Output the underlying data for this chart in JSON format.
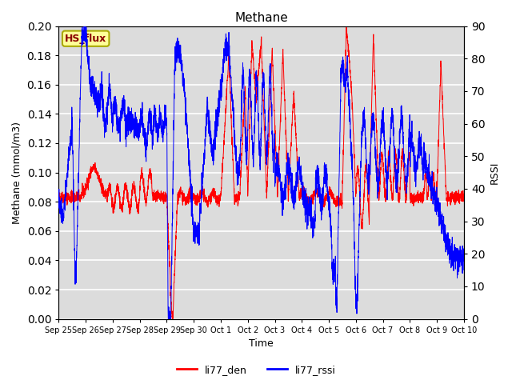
{
  "title": "Methane",
  "xlabel": "Time",
  "ylabel_left": "Methane (mmol/m3)",
  "ylabel_right": "RSSI",
  "ylim_left": [
    0.0,
    0.2
  ],
  "ylim_right": [
    0,
    90
  ],
  "yticks_left": [
    0.0,
    0.02,
    0.04,
    0.06,
    0.08,
    0.1,
    0.12,
    0.14,
    0.16,
    0.18,
    0.2
  ],
  "yticks_right": [
    0,
    10,
    20,
    30,
    40,
    50,
    60,
    70,
    80,
    90
  ],
  "color_red": "#FF0000",
  "color_blue": "#0000FF",
  "fig_bg_color": "#FFFFFF",
  "plot_bg_color": "#DCDCDC",
  "legend_label_red": "li77_den",
  "legend_label_blue": "li77_rssi",
  "hs_flux_label": "HS_flux",
  "hs_flux_bg": "#FFFF99",
  "hs_flux_border": "#AAAA00",
  "hs_flux_text_color": "#8B0000",
  "grid_color": "#FFFFFF",
  "tick_labels": [
    "Sep 25",
    "Sep 26",
    "Sep 27",
    "Sep 28",
    "Sep 29",
    "Sep 30",
    "Oct 1",
    "Oct 2",
    "Oct 3",
    "Oct 4",
    "Oct 5",
    "Oct 6",
    "Oct 7",
    "Oct 8",
    "Oct 9",
    "Oct 10"
  ]
}
